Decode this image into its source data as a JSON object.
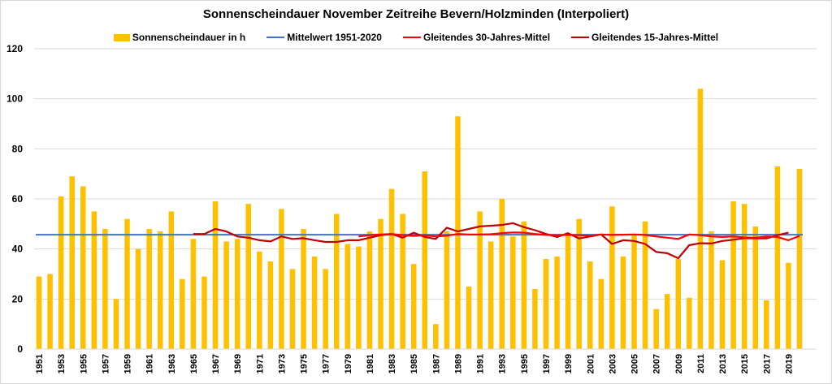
{
  "chart_data": {
    "type": "bar",
    "title": "Sonnenscheindauer November Zeitreihe Bevern/Holzminden (Interpoliert)",
    "xlabel": "",
    "ylabel": "",
    "ylim": [
      0,
      120
    ],
    "yticks": [
      0,
      20,
      40,
      60,
      80,
      100,
      120
    ],
    "grid": true,
    "legend_position": "top",
    "years": [
      1951,
      1952,
      1953,
      1954,
      1955,
      1956,
      1957,
      1958,
      1959,
      1960,
      1961,
      1962,
      1963,
      1964,
      1965,
      1966,
      1967,
      1968,
      1969,
      1970,
      1971,
      1972,
      1973,
      1974,
      1975,
      1976,
      1977,
      1978,
      1979,
      1980,
      1981,
      1982,
      1983,
      1984,
      1985,
      1986,
      1987,
      1988,
      1989,
      1990,
      1991,
      1992,
      1993,
      1994,
      1995,
      1996,
      1997,
      1998,
      1999,
      2000,
      2001,
      2002,
      2003,
      2004,
      2005,
      2006,
      2007,
      2008,
      2009,
      2010,
      2011,
      2012,
      2013,
      2014,
      2015,
      2016,
      2017,
      2018,
      2019,
      2020
    ],
    "xtick_labels": [
      "1951",
      "1953",
      "1955",
      "1957",
      "1959",
      "1961",
      "1963",
      "1965",
      "1967",
      "1969",
      "1971",
      "1973",
      "1975",
      "1977",
      "1979",
      "1981",
      "1983",
      "1985",
      "1987",
      "1989",
      "1991",
      "1993",
      "1995",
      "1997",
      "1999",
      "2001",
      "2003",
      "2005",
      "2007",
      "2009",
      "2011",
      "2013",
      "2015",
      "2017",
      "2019"
    ],
    "series": [
      {
        "name": "Sonnenscheindauer in h",
        "kind": "bar",
        "color": "#FFC000",
        "values": [
          29,
          30,
          61,
          69,
          65,
          55,
          48,
          20,
          52,
          40,
          48,
          47,
          55,
          28,
          44,
          29,
          59,
          43,
          44,
          58,
          39,
          35,
          56,
          32,
          48,
          37,
          32,
          54,
          42,
          41,
          47,
          52,
          64,
          54,
          34,
          71,
          10,
          47,
          93,
          25,
          55,
          43,
          60,
          45,
          51,
          24,
          36,
          37,
          46,
          52,
          35,
          28,
          57,
          37,
          46,
          51,
          16,
          22,
          36,
          20.5,
          104,
          47,
          35.5,
          59,
          58,
          49,
          19.5,
          73,
          34.5,
          72
        ]
      },
      {
        "name": "Mittelwert 1951-2020",
        "kind": "line",
        "color": "#4472C4",
        "constant": 45.7
      },
      {
        "name": "Gleitendes 30-Jahres-Mittel",
        "kind": "line",
        "color": "#FF0000",
        "start_year": 1980,
        "values": [
          45,
          45.5,
          45.8,
          46,
          45.5,
          45.2,
          45.5,
          45,
          45.3,
          46,
          45.8,
          45.8,
          45.9,
          46.3,
          46.6,
          46.5,
          46,
          45.6,
          45.5,
          45.6,
          45.5,
          45.3,
          45.8,
          45.6,
          45.7,
          45.8,
          45.6,
          45,
          44.5,
          44,
          45.8,
          45.5,
          45,
          44.8,
          45,
          44.6,
          44.5,
          45,
          44.8,
          43.5,
          45.2
        ]
      },
      {
        "name": "Gleitendes 15-Jahres-Mittel",
        "kind": "line",
        "color": "#C00000",
        "start_year": 1965,
        "values": [
          46,
          46,
          48,
          47,
          45,
          44.5,
          43.5,
          43,
          45,
          44,
          44.3,
          43.5,
          42.8,
          42.8,
          43.5,
          43.5,
          44.5,
          45.5,
          46,
          44.5,
          46.5,
          44.8,
          44,
          48.5,
          47,
          48,
          49,
          49.3,
          49.6,
          50.3,
          48.7,
          47.5,
          46,
          44.8,
          46.3,
          44.2,
          45,
          45.8,
          42,
          43.5,
          43.2,
          42,
          38.8,
          38.3,
          36.3,
          41.5,
          42.3,
          42.2,
          43.2,
          43.7,
          44.3,
          44.2,
          44.2,
          45.5,
          46.5
        ]
      }
    ]
  }
}
